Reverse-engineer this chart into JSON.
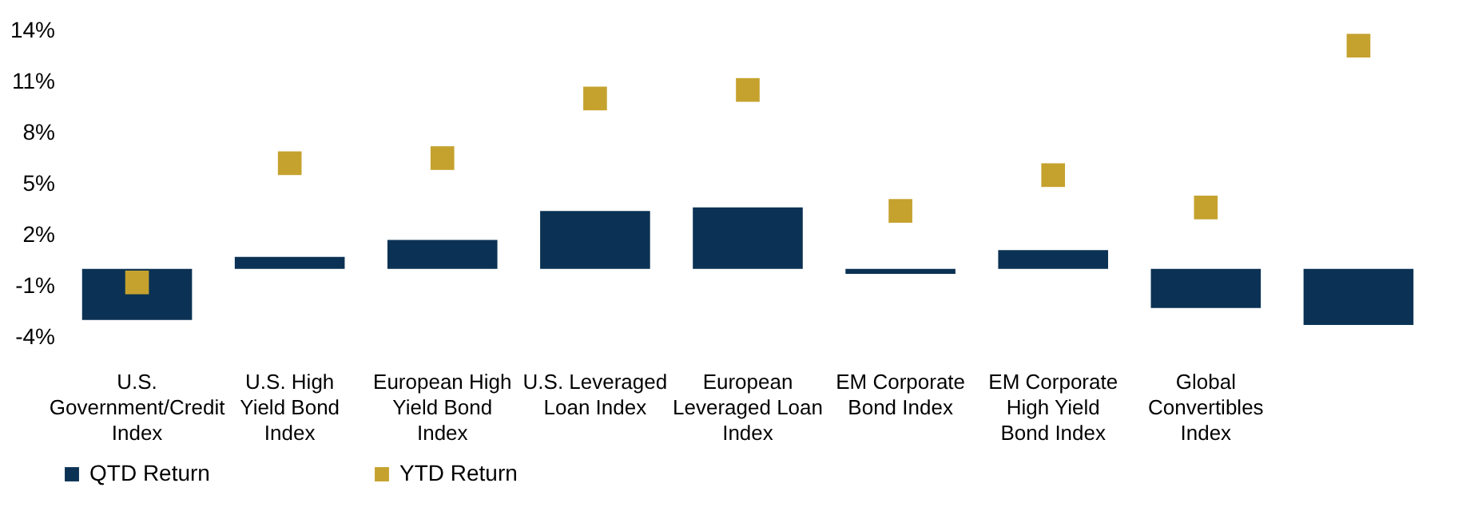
{
  "chart_data": {
    "type": "bar",
    "categories": [
      "U.S. Government/Credit Index",
      "U.S. High Yield Bond Index",
      "European High Yield Bond Index",
      "U.S. Leveraged Loan Index",
      "European Leveraged Loan Index",
      "EM Corporate Bond Index",
      "EM Corporate High Yield Bond Index",
      "Global Convertibles Index",
      null
    ],
    "series": [
      {
        "name": "QTD Return",
        "color": "#0b3254",
        "values": [
          -3.0,
          0.7,
          1.7,
          3.4,
          3.6,
          -0.3,
          1.1,
          -2.3,
          -3.3
        ]
      },
      {
        "name": "YTD Return",
        "type": "scatter",
        "color": "#c5a22e",
        "values": [
          -0.8,
          6.2,
          6.5,
          10.0,
          10.5,
          3.4,
          5.5,
          3.6,
          13.1
        ]
      }
    ],
    "ylim": [
      -4,
      14
    ],
    "yticks": [
      {
        "value": -4,
        "label": "-4%"
      },
      {
        "value": -1,
        "label": "-1%"
      },
      {
        "value": 2,
        "label": "2%"
      },
      {
        "value": 5,
        "label": "5%"
      },
      {
        "value": 8,
        "label": "8%"
      },
      {
        "value": 11,
        "label": "11%"
      },
      {
        "value": 14,
        "label": "14%"
      }
    ],
    "grid": false,
    "legend": "bottom",
    "marker": "square"
  }
}
